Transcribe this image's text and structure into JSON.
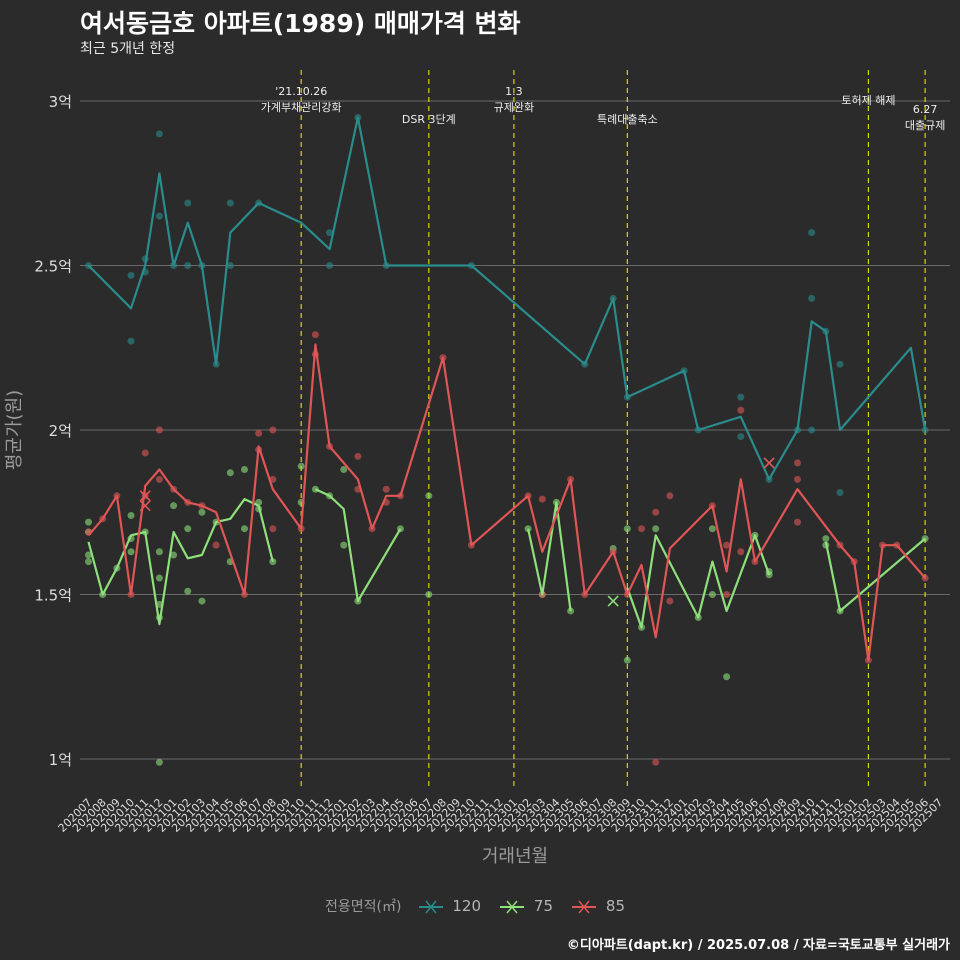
{
  "title": "여서동금호 아파트(1989) 매매가격 변화",
  "subtitle": "최근 5개년 한정",
  "caption": "©디아파트(dapt.kr) / 2025.07.08 / 자료=국토교통부 실거래가",
  "legend": {
    "title": "전용면적(㎡)",
    "items": [
      "120",
      "75",
      "85"
    ]
  },
  "colors": {
    "120": "#2a8c8c",
    "75": "#8ee07a",
    "85": "#e05555",
    "event_line": "#d6d600",
    "grid": "#6a6a6a",
    "background": "#2b2b2b"
  },
  "chart_data": {
    "type": "line",
    "xlabel": "거래년월",
    "ylabel": "평균가(원)",
    "ylim": [
      0.9,
      3.1
    ],
    "yticks": [
      1,
      1.5,
      2,
      2.5,
      3
    ],
    "ytick_labels": [
      "1억",
      "1.5억",
      "2억",
      "2.5억",
      "3억"
    ],
    "categories": [
      "202007",
      "202008",
      "202009",
      "202010",
      "202011",
      "202012",
      "202101",
      "202102",
      "202103",
      "202104",
      "202105",
      "202106",
      "202107",
      "202108",
      "202109",
      "202110",
      "202111",
      "202112",
      "202201",
      "202202",
      "202203",
      "202204",
      "202205",
      "202206",
      "202207",
      "202208",
      "202209",
      "202210",
      "202211",
      "202212",
      "202301",
      "202302",
      "202303",
      "202304",
      "202305",
      "202306",
      "202307",
      "202308",
      "202309",
      "202310",
      "202311",
      "202312",
      "202401",
      "202402",
      "202403",
      "202404",
      "202405",
      "202406",
      "202407",
      "202408",
      "202409",
      "202410",
      "202411",
      "202412",
      "202501",
      "202502",
      "202503",
      "202504",
      "202505",
      "202506",
      "202507"
    ],
    "events": [
      {
        "x": "202110",
        "label": "'21.10.26\n가계부채관리강화"
      },
      {
        "x": "202207",
        "label": "DSR 3단계"
      },
      {
        "x": "202301",
        "label": "1.3\n규제완화"
      },
      {
        "x": "202309",
        "label": "특례대출축소"
      },
      {
        "x": "202502",
        "label": "토허제 해제"
      },
      {
        "x": "202506",
        "label": "6.27\n대출규제"
      }
    ],
    "series": [
      {
        "name": "120",
        "line": [
          [
            "202007",
            2.5
          ],
          [
            "202010",
            2.37
          ],
          [
            "202011",
            2.5
          ],
          [
            "202012",
            2.78
          ],
          [
            "202101",
            2.5
          ],
          [
            "202102",
            2.63
          ],
          [
            "202103",
            2.5
          ],
          [
            "202104",
            2.2
          ],
          [
            "202105",
            2.6
          ],
          [
            "202107",
            2.69
          ],
          [
            "202110",
            2.63
          ],
          [
            "202112",
            2.55
          ],
          [
            "202202",
            2.95
          ],
          [
            "202204",
            2.5
          ],
          [
            "202210",
            2.5
          ],
          [
            "202306",
            2.2
          ],
          [
            "202308",
            2.4
          ],
          [
            "202309",
            2.1
          ],
          [
            "202401",
            2.18
          ],
          [
            "202402",
            2.0
          ],
          [
            "202405",
            2.04
          ],
          [
            "202407",
            1.85
          ],
          [
            "202409",
            2.0
          ],
          [
            "202410",
            2.33
          ],
          [
            "202411",
            2.3
          ],
          [
            "202412",
            2.0
          ],
          [
            "202505",
            2.25
          ],
          [
            "202506",
            2.0
          ]
        ],
        "points": [
          [
            "202007",
            2.5
          ],
          [
            "202010",
            2.47
          ],
          [
            "202010",
            2.27
          ],
          [
            "202011",
            2.52
          ],
          [
            "202011",
            2.48
          ],
          [
            "202012",
            2.9
          ],
          [
            "202012",
            2.65
          ],
          [
            "202101",
            2.5
          ],
          [
            "202102",
            2.69
          ],
          [
            "202102",
            2.5
          ],
          [
            "202103",
            2.5
          ],
          [
            "202104",
            2.2
          ],
          [
            "202105",
            2.69
          ],
          [
            "202105",
            2.5
          ],
          [
            "202107",
            2.69
          ],
          [
            "202112",
            2.6
          ],
          [
            "202112",
            2.5
          ],
          [
            "202202",
            2.95
          ],
          [
            "202204",
            2.5
          ],
          [
            "202210",
            2.5
          ],
          [
            "202306",
            2.2
          ],
          [
            "202308",
            2.4
          ],
          [
            "202309",
            2.1
          ],
          [
            "202401",
            2.18
          ],
          [
            "202402",
            2.0
          ],
          [
            "202405",
            2.1
          ],
          [
            "202405",
            1.98
          ],
          [
            "202407",
            1.85
          ],
          [
            "202409",
            2.0
          ],
          [
            "202410",
            2.6
          ],
          [
            "202410",
            2.4
          ],
          [
            "202410",
            2.0
          ],
          [
            "202411",
            2.3
          ],
          [
            "202412",
            2.2
          ],
          [
            "202412",
            1.81
          ],
          [
            "202506",
            2.0
          ]
        ],
        "cancelled": [
          [
            "202407",
            1.9
          ]
        ]
      },
      {
        "name": "75",
        "line": [
          [
            "202007",
            1.66
          ],
          [
            "202008",
            1.5
          ],
          [
            "202009",
            1.58
          ],
          [
            "202010",
            1.68
          ],
          [
            "202011",
            1.69
          ],
          [
            "202012",
            1.41
          ],
          [
            "202101",
            1.69
          ],
          [
            "202102",
            1.61
          ],
          [
            "202103",
            1.62
          ],
          [
            "202104",
            1.72
          ],
          [
            "202105",
            1.73
          ],
          [
            "202106",
            1.79
          ],
          [
            "202107",
            1.77
          ],
          [
            "202108",
            1.6
          ],
          null,
          [
            "202111",
            1.82
          ],
          [
            "202112",
            1.8
          ],
          [
            "202201",
            1.76
          ],
          [
            "202202",
            1.48
          ],
          [
            "202205",
            1.7
          ],
          null,
          [
            "202302",
            1.7
          ],
          [
            "202303",
            1.5
          ],
          [
            "202304",
            1.78
          ],
          [
            "202305",
            1.45
          ],
          null,
          [
            "202309",
            1.52
          ],
          [
            "202310",
            1.4
          ],
          [
            "202311",
            1.68
          ],
          [
            "202402",
            1.43
          ],
          [
            "202403",
            1.6
          ],
          [
            "202404",
            1.45
          ],
          [
            "202406",
            1.68
          ],
          [
            "202407",
            1.56
          ],
          null,
          [
            "202411",
            1.66
          ],
          [
            "202412",
            1.45
          ],
          [
            "202506",
            1.67
          ]
        ],
        "points": [
          [
            "202007",
            1.72
          ],
          [
            "202007",
            1.69
          ],
          [
            "202007",
            1.62
          ],
          [
            "202007",
            1.6
          ],
          [
            "202008",
            1.5
          ],
          [
            "202009",
            1.58
          ],
          [
            "202010",
            1.74
          ],
          [
            "202010",
            1.67
          ],
          [
            "202010",
            1.63
          ],
          [
            "202011",
            1.69
          ],
          [
            "202012",
            1.63
          ],
          [
            "202012",
            1.55
          ],
          [
            "202012",
            1.47
          ],
          [
            "202012",
            1.43
          ],
          [
            "202012",
            0.99
          ],
          [
            "202101",
            1.77
          ],
          [
            "202101",
            1.62
          ],
          [
            "202102",
            1.7
          ],
          [
            "202102",
            1.51
          ],
          [
            "202103",
            1.75
          ],
          [
            "202103",
            1.48
          ],
          [
            "202104",
            1.72
          ],
          [
            "202105",
            1.87
          ],
          [
            "202105",
            1.6
          ],
          [
            "202106",
            1.88
          ],
          [
            "202106",
            1.7
          ],
          [
            "202107",
            1.78
          ],
          [
            "202107",
            1.76
          ],
          [
            "202108",
            1.6
          ],
          [
            "202110",
            1.89
          ],
          [
            "202110",
            1.78
          ],
          [
            "202111",
            1.82
          ],
          [
            "202112",
            1.8
          ],
          [
            "202201",
            1.88
          ],
          [
            "202201",
            1.65
          ],
          [
            "202202",
            1.48
          ],
          [
            "202205",
            1.7
          ],
          [
            "202207",
            1.8
          ],
          [
            "202207",
            1.5
          ],
          [
            "202302",
            1.7
          ],
          [
            "202303",
            1.5
          ],
          [
            "202304",
            1.78
          ],
          [
            "202305",
            1.45
          ],
          [
            "202308",
            1.64
          ],
          [
            "202309",
            1.7
          ],
          [
            "202309",
            1.3
          ],
          [
            "202310",
            1.4
          ],
          [
            "202311",
            1.7
          ],
          [
            "202402",
            1.43
          ],
          [
            "202403",
            1.7
          ],
          [
            "202403",
            1.5
          ],
          [
            "202404",
            1.25
          ],
          [
            "202406",
            1.68
          ],
          [
            "202407",
            1.57
          ],
          [
            "202407",
            1.56
          ],
          [
            "202411",
            1.67
          ],
          [
            "202411",
            1.65
          ],
          [
            "202412",
            1.45
          ],
          [
            "202506",
            1.67
          ]
        ],
        "cancelled": [
          [
            "202308",
            1.48
          ]
        ]
      },
      {
        "name": "85",
        "line": [
          [
            "202007",
            1.68
          ],
          [
            "202008",
            1.73
          ],
          [
            "202009",
            1.8
          ],
          [
            "202010",
            1.5
          ],
          [
            "202011",
            1.83
          ],
          [
            "202012",
            1.88
          ],
          [
            "202101",
            1.82
          ],
          [
            "202102",
            1.78
          ],
          [
            "202103",
            1.77
          ],
          [
            "202104",
            1.75
          ],
          [
            "202106",
            1.5
          ],
          [
            "202107",
            1.95
          ],
          [
            "202108",
            1.82
          ],
          [
            "202110",
            1.7
          ],
          [
            "202111",
            2.26
          ],
          [
            "202112",
            1.95
          ],
          [
            "202202",
            1.85
          ],
          [
            "202203",
            1.7
          ],
          [
            "202204",
            1.8
          ],
          [
            "202205",
            1.8
          ],
          [
            "202208",
            2.22
          ],
          [
            "202210",
            1.65
          ],
          [
            "202302",
            1.8
          ],
          [
            "202303",
            1.63
          ],
          [
            "202305",
            1.85
          ],
          [
            "202306",
            1.5
          ],
          [
            "202308",
            1.63
          ],
          [
            "202309",
            1.5
          ],
          [
            "202310",
            1.59
          ],
          [
            "202311",
            1.37
          ],
          [
            "202312",
            1.64
          ],
          [
            "202403",
            1.77
          ],
          [
            "202404",
            1.57
          ],
          [
            "202405",
            1.85
          ],
          [
            "202406",
            1.6
          ],
          [
            "202409",
            1.82
          ],
          [
            "202412",
            1.65
          ],
          [
            "202501",
            1.6
          ],
          [
            "202502",
            1.3
          ],
          [
            "202503",
            1.65
          ],
          [
            "202504",
            1.65
          ],
          [
            "202506",
            1.55
          ]
        ],
        "points": [
          [
            "202007",
            1.69
          ],
          [
            "202008",
            1.73
          ],
          [
            "202009",
            1.8
          ],
          [
            "202010",
            1.5
          ],
          [
            "202011",
            1.93
          ],
          [
            "202011",
            1.8
          ],
          [
            "202012",
            2.0
          ],
          [
            "202012",
            1.85
          ],
          [
            "202101",
            1.82
          ],
          [
            "202102",
            1.78
          ],
          [
            "202103",
            1.77
          ],
          [
            "202104",
            1.65
          ],
          [
            "202106",
            1.5
          ],
          [
            "202107",
            1.99
          ],
          [
            "202107",
            1.94
          ],
          [
            "202108",
            2.0
          ],
          [
            "202108",
            1.85
          ],
          [
            "202108",
            1.7
          ],
          [
            "202110",
            1.7
          ],
          [
            "202111",
            2.29
          ],
          [
            "202111",
            2.23
          ],
          [
            "202112",
            1.95
          ],
          [
            "202202",
            1.92
          ],
          [
            "202202",
            1.82
          ],
          [
            "202203",
            1.7
          ],
          [
            "202204",
            1.82
          ],
          [
            "202204",
            1.78
          ],
          [
            "202205",
            1.8
          ],
          [
            "202208",
            2.22
          ],
          [
            "202210",
            1.65
          ],
          [
            "202302",
            1.8
          ],
          [
            "202303",
            1.79
          ],
          [
            "202303",
            1.5
          ],
          [
            "202305",
            1.85
          ],
          [
            "202306",
            1.5
          ],
          [
            "202308",
            1.63
          ],
          [
            "202309",
            1.5
          ],
          [
            "202310",
            1.7
          ],
          [
            "202311",
            1.75
          ],
          [
            "202311",
            0.99
          ],
          [
            "202312",
            1.8
          ],
          [
            "202312",
            1.48
          ],
          [
            "202403",
            1.77
          ],
          [
            "202404",
            1.65
          ],
          [
            "202404",
            1.5
          ],
          [
            "202405",
            2.06
          ],
          [
            "202405",
            1.63
          ],
          [
            "202406",
            1.6
          ],
          [
            "202409",
            1.9
          ],
          [
            "202409",
            1.85
          ],
          [
            "202409",
            1.72
          ],
          [
            "202412",
            1.65
          ],
          [
            "202501",
            1.6
          ],
          [
            "202502",
            1.3
          ],
          [
            "202503",
            1.65
          ],
          [
            "202504",
            1.65
          ],
          [
            "202506",
            1.55
          ]
        ],
        "cancelled": [
          [
            "202011",
            1.8
          ],
          [
            "202011",
            1.77
          ],
          [
            "202407",
            1.9
          ]
        ]
      }
    ]
  }
}
